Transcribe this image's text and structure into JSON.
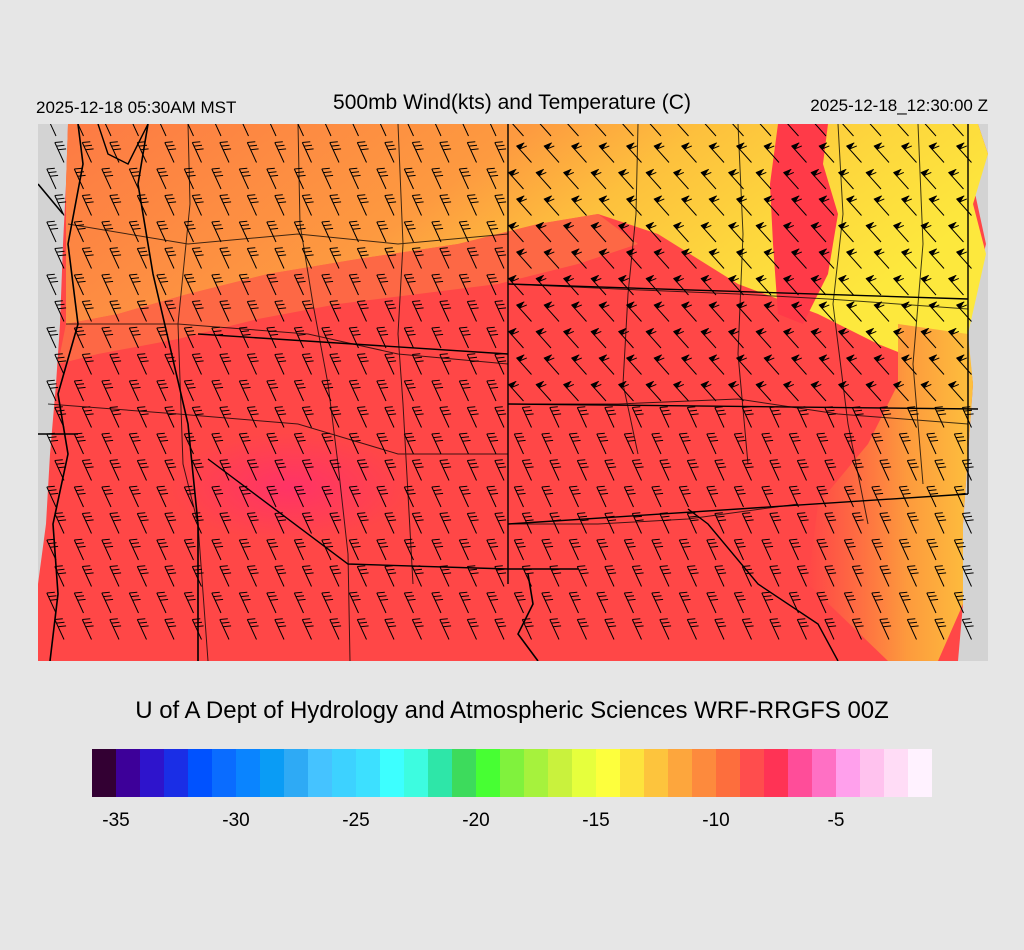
{
  "header": {
    "valid_local": "2025-12-18 05:30AM MST",
    "title": "500mb Wind(kts) and Temperature (C)",
    "valid_utc": "2025-12-18_12:30:00 Z"
  },
  "credit": "U of A Dept of Hydrology and Atmospheric Sciences WRF-RRGFS 00Z",
  "colors": {
    "background": "#e6e6e6",
    "map_edge": "#d3d3d3"
  },
  "colorbar": {
    "swatches": [
      "#330033",
      "#3d0099",
      "#2e14cc",
      "#1a2ee6",
      "#0052ff",
      "#0a6cff",
      "#0a84ff",
      "#0a9cf5",
      "#2eaaf5",
      "#45c3ff",
      "#3dd2ff",
      "#3de0ff",
      "#3dffff",
      "#3dfce0",
      "#2ee6a8",
      "#3ddb5c",
      "#47ff33",
      "#80f23d",
      "#a6f23d",
      "#c9f23d",
      "#e6ff3d",
      "#fdff3d",
      "#fde33d",
      "#fdc43d",
      "#fda63d",
      "#fd8a3d",
      "#fd6e3d",
      "#ff4d4d",
      "#ff3355",
      "#ff4d99",
      "#ff70c4",
      "#ffa0ec",
      "#ffc2ee",
      "#ffdcf6",
      "#fff2ff"
    ],
    "tick_labels": [
      {
        "label": "-35",
        "value": -35
      },
      {
        "label": "-30",
        "value": -30
      },
      {
        "label": "-25",
        "value": -25
      },
      {
        "label": "-20",
        "value": -20
      },
      {
        "label": "-15",
        "value": -15
      },
      {
        "label": "-10",
        "value": -10
      },
      {
        "label": "-5",
        "value": -5
      }
    ],
    "min": -36,
    "max": -1
  }
}
